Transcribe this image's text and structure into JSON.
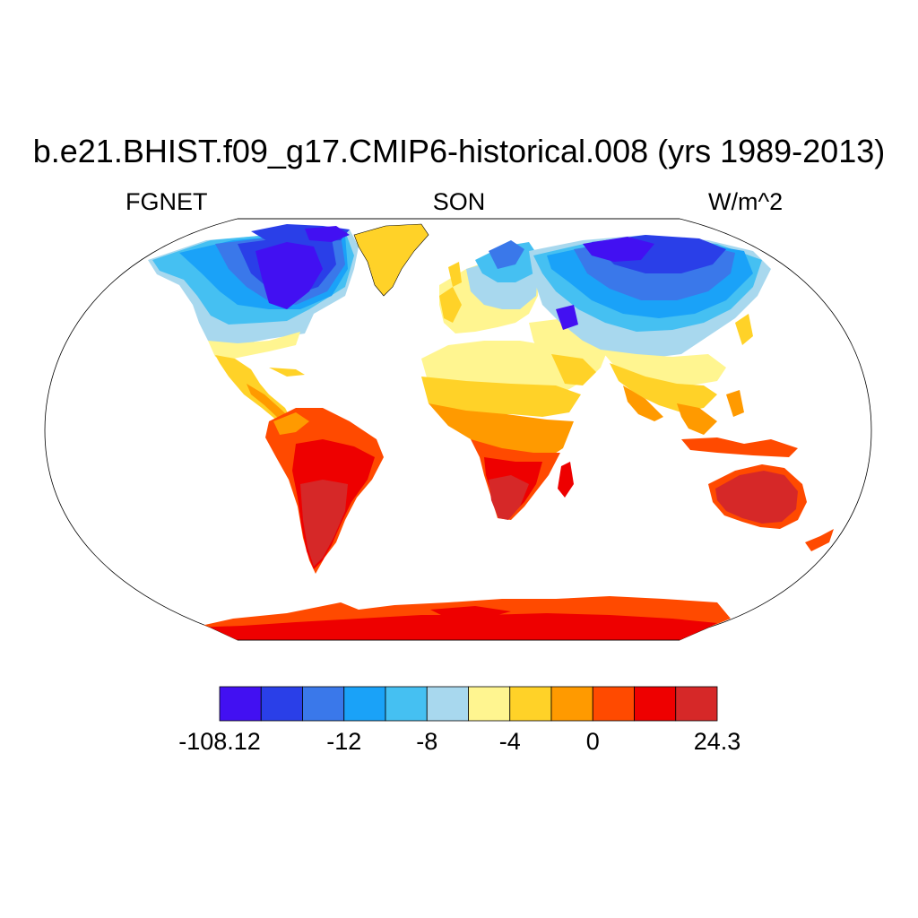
{
  "title": "b.e21.BHIST.f09_g17.CMIP6-historical.008 (yrs 1989-2013)",
  "left_label": "FGNET",
  "center_label": "SON",
  "right_label": "W/m^2",
  "projection": "Robinson",
  "colorbar": {
    "colors": [
      "#4210f2",
      "#2a3fe8",
      "#3a78ea",
      "#1aa2f8",
      "#45c0f2",
      "#a8d8ee",
      "#fff590",
      "#ffd228",
      "#ff9a00",
      "#ff4a00",
      "#ee0000",
      "#d62828"
    ],
    "tick_labels": [
      "-108.12",
      "-12",
      "-8",
      "-4",
      "0",
      "24.3"
    ]
  },
  "colors": {
    "ocean": "#ffffff",
    "outline": "#000000"
  }
}
